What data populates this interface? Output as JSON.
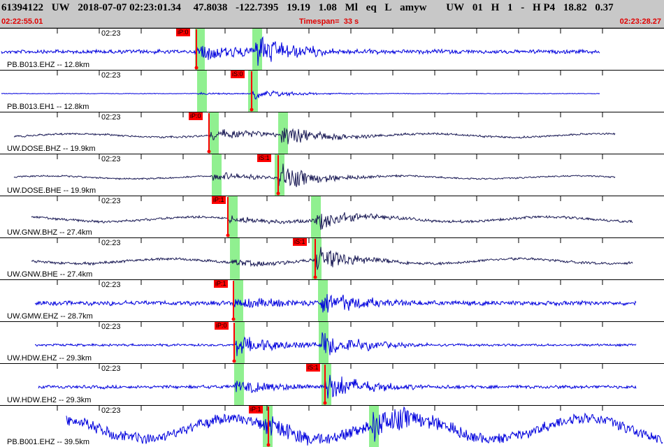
{
  "header": {
    "event_id": "61394122",
    "network": "UW",
    "origin_datetime": "2018-07-07 02:23:01.34",
    "latitude": "47.8038",
    "longitude": "-122.7395",
    "depth": "19.19",
    "magnitude": "1.08",
    "mag_type": "Ml",
    "event_type": "eq",
    "review": "L",
    "analyst": "amyw",
    "src_net": "UW",
    "version": "01",
    "field_h": "H",
    "count": "1",
    "dash": "-",
    "hp": "H P4",
    "value_a": "18.82",
    "value_b": "0.37"
  },
  "time_bar": {
    "start": "02:22:55.01",
    "timespan_label": "Timespan=",
    "timespan_value": "33 s",
    "end": "02:23:28.27"
  },
  "colors": {
    "trace_blue": "#0000dd",
    "trace_navy": "#1a1a55",
    "pick_red": "#ff0000",
    "window_green": "#90f090",
    "header_bg": "#c8c8c8",
    "time_red": "#e00000"
  },
  "traces": [
    {
      "station": "PB.B013.EHZ -- 12.8km",
      "tick": "02:23",
      "pick": "iP:0",
      "phase": "P",
      "color": "blue",
      "amp": 0.55,
      "noise": 0.12,
      "second_amp": 0.9
    },
    {
      "station": "PB.B013.EH1 -- 12.8km",
      "tick": "02:23",
      "pick": "iS:0",
      "phase": "S",
      "color": "blue",
      "amp": 0.05,
      "noise": 0.02,
      "second_amp": 0.35
    },
    {
      "station": "UW.DOSE.BHZ -- 19.9km",
      "tick": "02:23",
      "pick": "iP:0",
      "phase": "P",
      "color": "navy",
      "amp": 0.35,
      "noise": 0.06,
      "second_amp": 0.75
    },
    {
      "station": "UW.DOSE.BHE -- 19.9km",
      "tick": "02:23",
      "pick": "iS:1",
      "phase": "S",
      "color": "navy",
      "amp": 0.25,
      "noise": 0.05,
      "second_amp": 0.85
    },
    {
      "station": "UW.GNW.BHZ -- 27.4km",
      "tick": "02:23",
      "pick": "iP:1",
      "phase": "P",
      "color": "navy",
      "amp": 0.2,
      "noise": 0.08,
      "second_amp": 0.6
    },
    {
      "station": "UW.GNW.BHE -- 27.4km",
      "tick": "02:23",
      "pick": "iS:1",
      "phase": "S",
      "color": "navy",
      "amp": 0.2,
      "noise": 0.08,
      "second_amp": 0.8
    },
    {
      "station": "UW.GMW.EHZ -- 28.7km",
      "tick": "02:23",
      "pick": "iP:1",
      "phase": "P",
      "color": "blue",
      "amp": 0.35,
      "noise": 0.14,
      "second_amp": 0.7
    },
    {
      "station": "UW.HDW.EHZ -- 29.3km",
      "tick": "02:23",
      "pick": "iP:0",
      "phase": "P",
      "color": "blue",
      "amp": 0.6,
      "noise": 0.07,
      "second_amp": 0.85
    },
    {
      "station": "UW.HDW.EH2 -- 29.3km",
      "tick": "02:23",
      "pick": "iS:1",
      "phase": "S",
      "color": "blue",
      "amp": 0.4,
      "noise": 0.1,
      "second_amp": 0.95
    },
    {
      "station": "PB.B001.EHZ -- 39.5km",
      "tick": "02:23",
      "pick": "iP:1",
      "phase": "P",
      "color": "blue",
      "amp": 0.45,
      "noise": 0.35,
      "second_amp": 0.9
    }
  ]
}
